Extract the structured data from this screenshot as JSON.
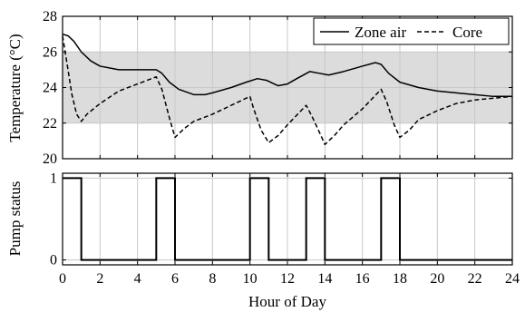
{
  "chart_data": [
    {
      "type": "line",
      "ylabel": "Temperature (°C)",
      "xlim": [
        0,
        24
      ],
      "ylim": [
        20,
        28
      ],
      "x_ticks": [
        0,
        2,
        4,
        6,
        8,
        10,
        12,
        14,
        16,
        18,
        20,
        22,
        24
      ],
      "y_ticks": [
        20,
        22,
        24,
        26,
        28
      ],
      "grid": true,
      "legend_position": "top-right",
      "comfort_band": [
        22,
        26
      ],
      "comfort_band_color": "#dcdcdc",
      "series": [
        {
          "name": "Zone air",
          "style": "solid",
          "color": "#000000",
          "points": [
            [
              0,
              27.0
            ],
            [
              0.3,
              26.9
            ],
            [
              0.6,
              26.6
            ],
            [
              1.0,
              26.0
            ],
            [
              1.5,
              25.5
            ],
            [
              2,
              25.2
            ],
            [
              3,
              25.0
            ],
            [
              4,
              25.0
            ],
            [
              5.0,
              25.0
            ],
            [
              5.3,
              24.8
            ],
            [
              5.7,
              24.3
            ],
            [
              6.2,
              23.9
            ],
            [
              7,
              23.6
            ],
            [
              7.6,
              23.6
            ],
            [
              8,
              23.7
            ],
            [
              9,
              24.0
            ],
            [
              9.8,
              24.3
            ],
            [
              10.4,
              24.5
            ],
            [
              10.9,
              24.4
            ],
            [
              11.5,
              24.1
            ],
            [
              12,
              24.2
            ],
            [
              12.5,
              24.5
            ],
            [
              13.2,
              24.9
            ],
            [
              13.7,
              24.8
            ],
            [
              14.2,
              24.7
            ],
            [
              15,
              24.9
            ],
            [
              16,
              25.2
            ],
            [
              16.7,
              25.4
            ],
            [
              17.0,
              25.3
            ],
            [
              17.4,
              24.8
            ],
            [
              18,
              24.3
            ],
            [
              19,
              24.0
            ],
            [
              20,
              23.8
            ],
            [
              21,
              23.7
            ],
            [
              22,
              23.6
            ],
            [
              23,
              23.5
            ],
            [
              24,
              23.5
            ]
          ]
        },
        {
          "name": "Core",
          "style": "dashed",
          "color": "#000000",
          "points": [
            [
              0,
              26.9
            ],
            [
              0.2,
              25.6
            ],
            [
              0.5,
              23.6
            ],
            [
              0.75,
              22.5
            ],
            [
              1.0,
              22.1
            ],
            [
              1.3,
              22.5
            ],
            [
              2,
              23.1
            ],
            [
              3,
              23.8
            ],
            [
              4,
              24.2
            ],
            [
              5.0,
              24.6
            ],
            [
              5.3,
              23.9
            ],
            [
              5.7,
              22.3
            ],
            [
              6.0,
              21.2
            ],
            [
              6.5,
              21.7
            ],
            [
              7,
              22.1
            ],
            [
              8,
              22.5
            ],
            [
              9,
              23.0
            ],
            [
              10,
              23.5
            ],
            [
              10.2,
              22.8
            ],
            [
              10.6,
              21.6
            ],
            [
              11.0,
              20.9
            ],
            [
              11.5,
              21.3
            ],
            [
              12,
              21.9
            ],
            [
              13,
              23.0
            ],
            [
              13.3,
              22.4
            ],
            [
              13.7,
              21.5
            ],
            [
              14.0,
              20.8
            ],
            [
              14.5,
              21.3
            ],
            [
              15,
              21.9
            ],
            [
              16,
              22.8
            ],
            [
              17,
              23.9
            ],
            [
              17.3,
              23.2
            ],
            [
              17.7,
              21.9
            ],
            [
              18.0,
              21.2
            ],
            [
              18.5,
              21.6
            ],
            [
              19,
              22.2
            ],
            [
              20,
              22.7
            ],
            [
              21,
              23.1
            ],
            [
              22,
              23.3
            ],
            [
              23,
              23.4
            ],
            [
              24,
              23.5
            ]
          ]
        }
      ]
    },
    {
      "type": "line",
      "xlabel": "Hour of Day",
      "ylabel": "Pump status",
      "xlim": [
        0,
        24
      ],
      "ylim": [
        -0.06,
        1.06
      ],
      "x_ticks": [
        0,
        2,
        4,
        6,
        8,
        10,
        12,
        14,
        16,
        18,
        20,
        22,
        24
      ],
      "y_ticks": [
        0,
        1
      ],
      "grid": true,
      "series": [
        {
          "style": "step",
          "color": "#000000",
          "points": [
            [
              0,
              1
            ],
            [
              1,
              1
            ],
            [
              1,
              0
            ],
            [
              5,
              0
            ],
            [
              5,
              1
            ],
            [
              6,
              1
            ],
            [
              6,
              0
            ],
            [
              10,
              0
            ],
            [
              10,
              1
            ],
            [
              11,
              1
            ],
            [
              11,
              0
            ],
            [
              13,
              0
            ],
            [
              13,
              1
            ],
            [
              14,
              1
            ],
            [
              14,
              0
            ],
            [
              17,
              0
            ],
            [
              17,
              1
            ],
            [
              18,
              1
            ],
            [
              18,
              0
            ],
            [
              24,
              0
            ]
          ]
        }
      ]
    }
  ]
}
